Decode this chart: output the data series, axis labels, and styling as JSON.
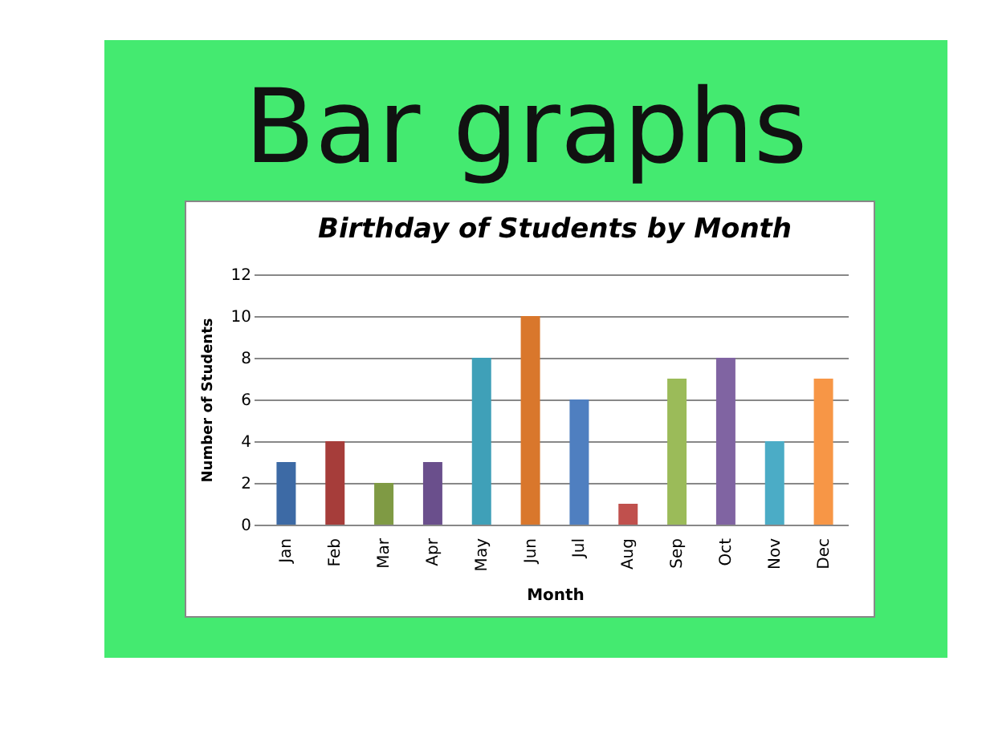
{
  "chart_data": {
    "type": "bar",
    "title": "Bar graphs",
    "subtitle": "Birthday of Students by Month",
    "xlabel": "Month",
    "ylabel": "Number of Students",
    "categories": [
      "Jan",
      "Feb",
      "Mar",
      "Apr",
      "May",
      "Jun",
      "Jul",
      "Aug",
      "Sep",
      "Oct",
      "Nov",
      "Dec"
    ],
    "values": [
      3,
      4,
      2,
      3,
      8,
      10,
      6,
      1,
      7,
      8,
      4,
      7
    ],
    "colors": [
      "#3d6aa5",
      "#a63d3a",
      "#7f9a44",
      "#6a4f8c",
      "#3fa0b8",
      "#d9772c",
      "#4f7fc0",
      "#c0504d",
      "#9bbb59",
      "#8064a2",
      "#4bacc6",
      "#f79646"
    ],
    "ylim": [
      0,
      12
    ],
    "yticks": [
      0,
      2,
      4,
      6,
      8,
      10,
      12
    ],
    "grid": "y",
    "legend": false
  }
}
